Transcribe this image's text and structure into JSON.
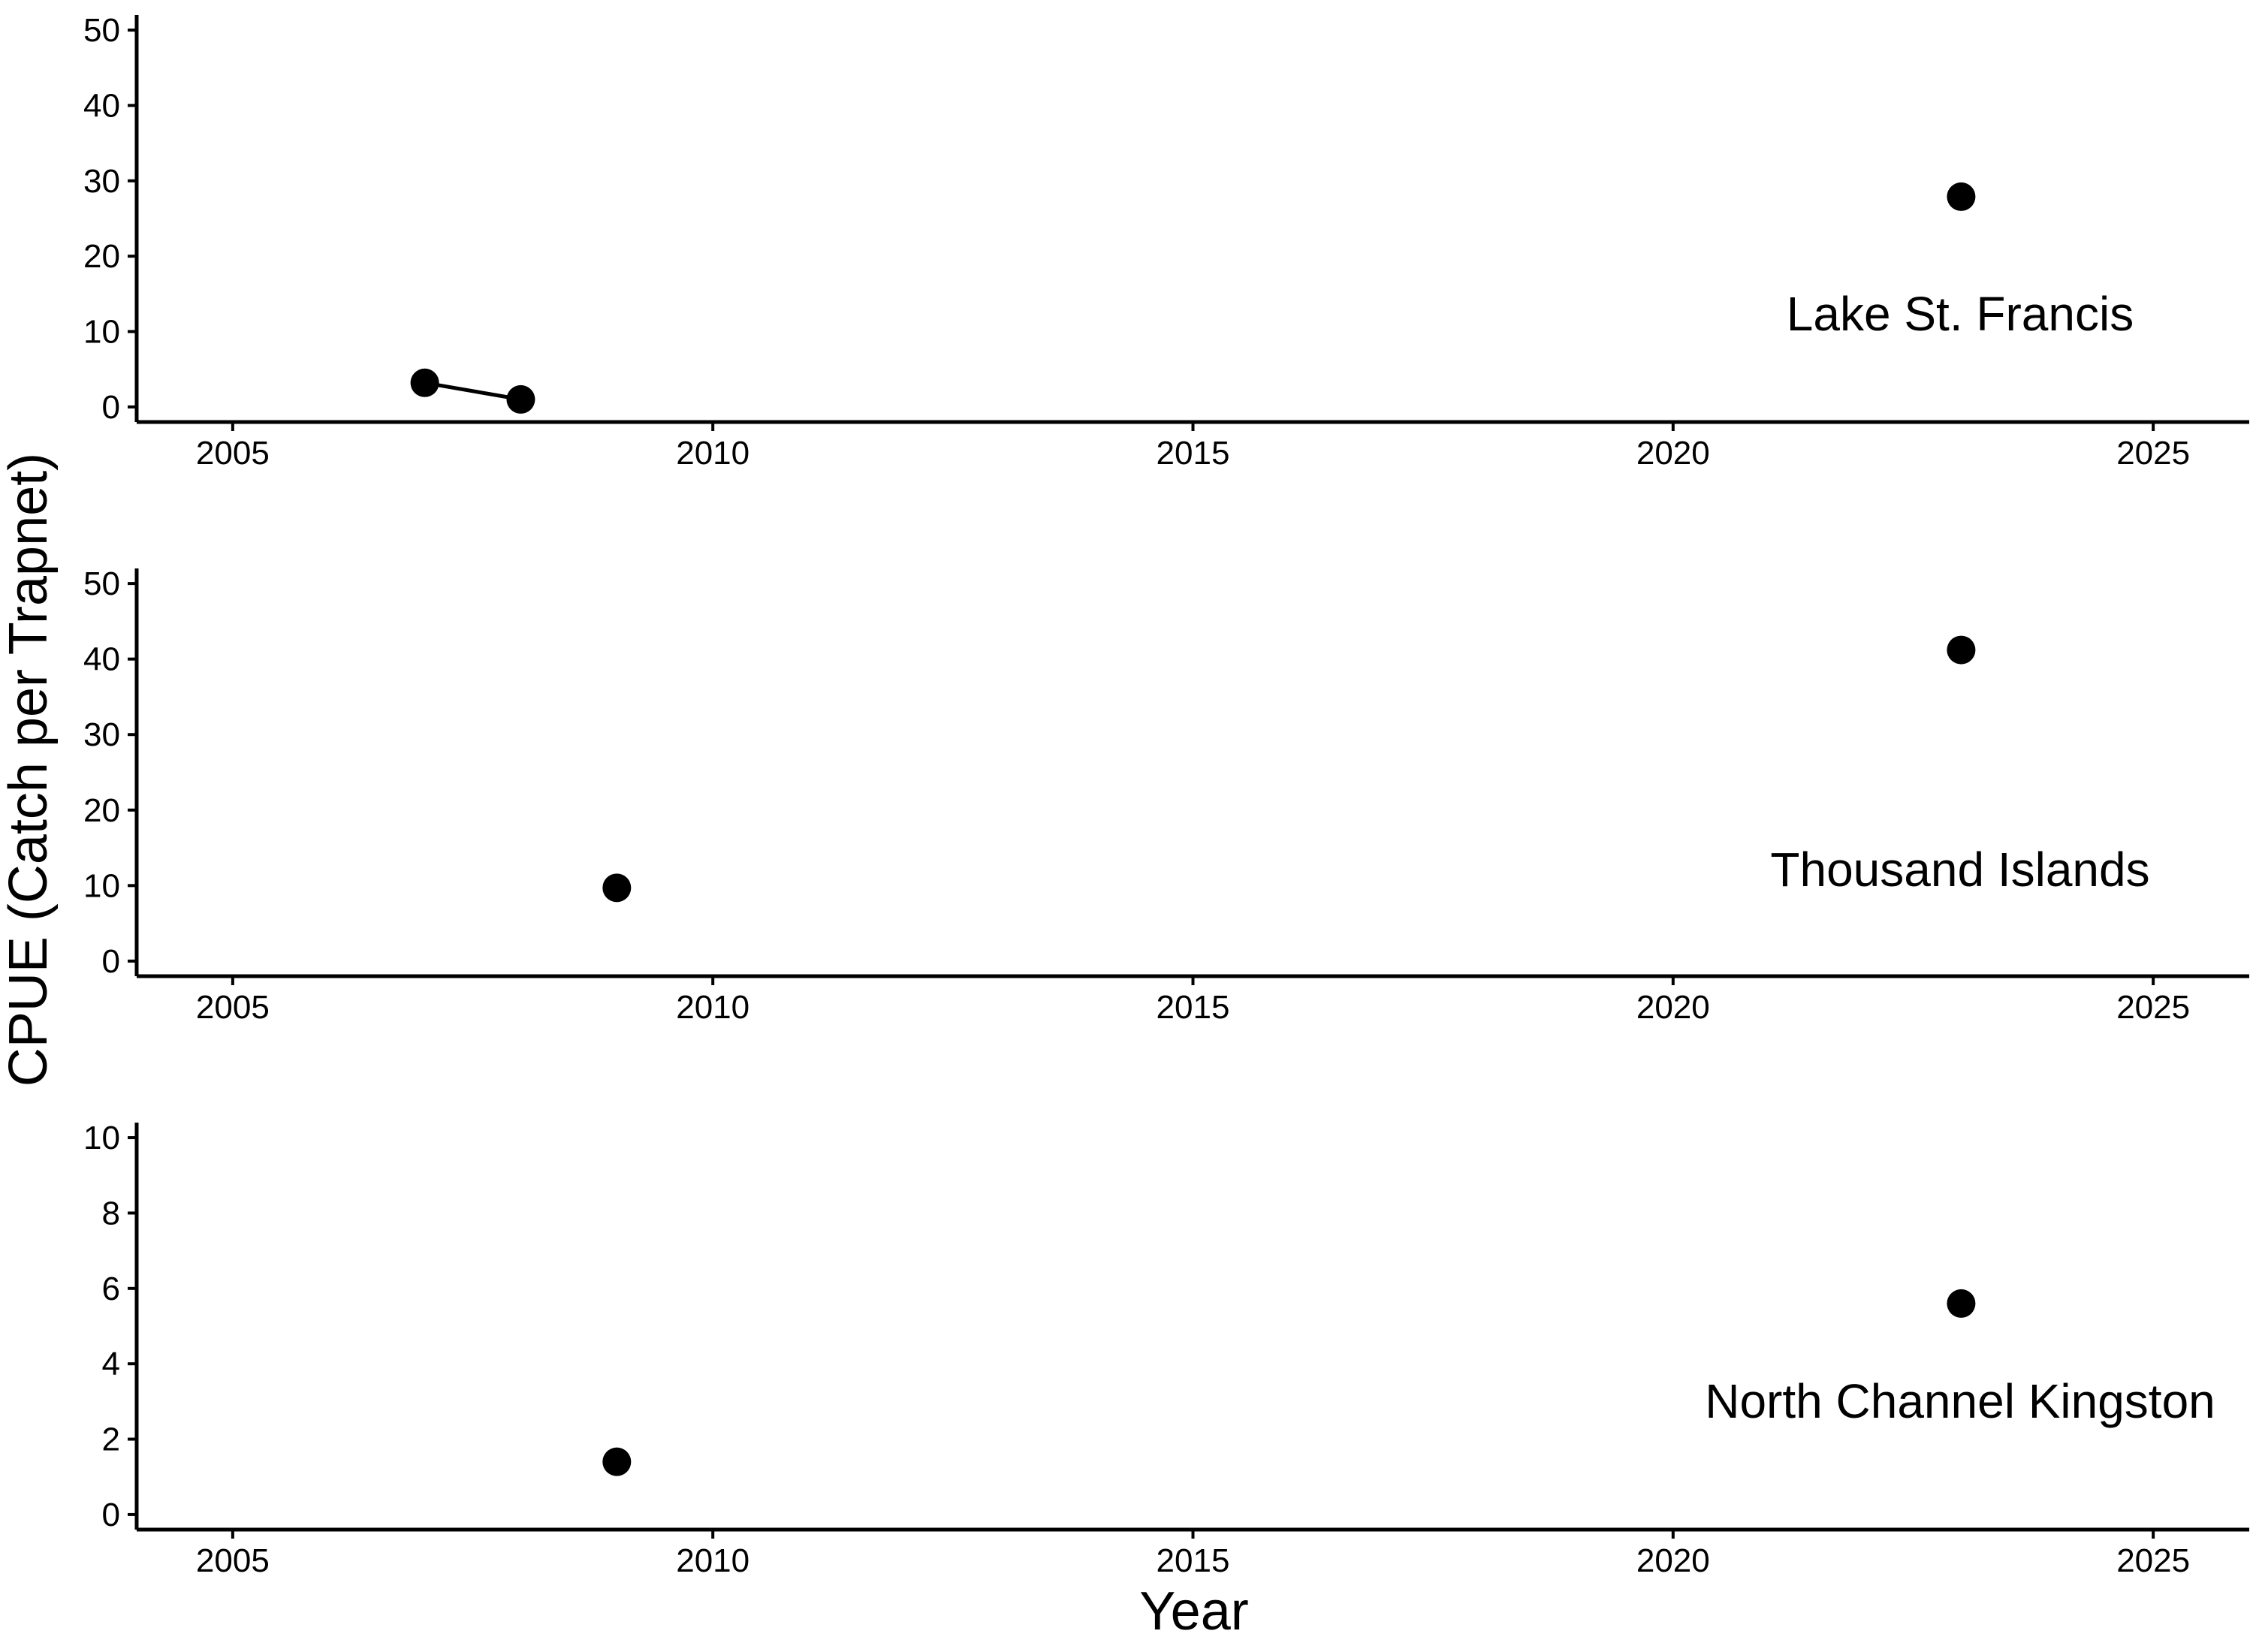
{
  "chart_data": {
    "type": "scatter",
    "ylabel": "CPUE (Catch per Trapnet)",
    "xlabel": "Year",
    "xlim": [
      2004,
      2026
    ],
    "xticks": [
      2005,
      2010,
      2015,
      2020,
      2025
    ],
    "panels": [
      {
        "label": "Lake St. Francis",
        "ylim": [
          -2,
          52
        ],
        "yticks": [
          0,
          10,
          20,
          30,
          40,
          50
        ],
        "points": [
          {
            "x": 2007,
            "y": 3.2
          },
          {
            "x": 2008,
            "y": 1.0
          },
          {
            "x": 2023,
            "y": 27.9
          }
        ],
        "lines": [
          [
            {
              "x": 2007,
              "y": 3.2
            },
            {
              "x": 2008,
              "y": 1.0
            }
          ]
        ]
      },
      {
        "label": "Thousand Islands",
        "ylim": [
          -2,
          52
        ],
        "yticks": [
          0,
          10,
          20,
          30,
          40,
          50
        ],
        "points": [
          {
            "x": 2009,
            "y": 9.7
          },
          {
            "x": 2023,
            "y": 41.2
          }
        ],
        "lines": []
      },
      {
        "label": "North Channel Kingston",
        "ylim": [
          -0.4,
          10.4
        ],
        "yticks": [
          0,
          2,
          4,
          6,
          8,
          10
        ],
        "points": [
          {
            "x": 2009,
            "y": 1.4
          },
          {
            "x": 2023,
            "y": 5.6
          }
        ],
        "lines": []
      }
    ]
  }
}
